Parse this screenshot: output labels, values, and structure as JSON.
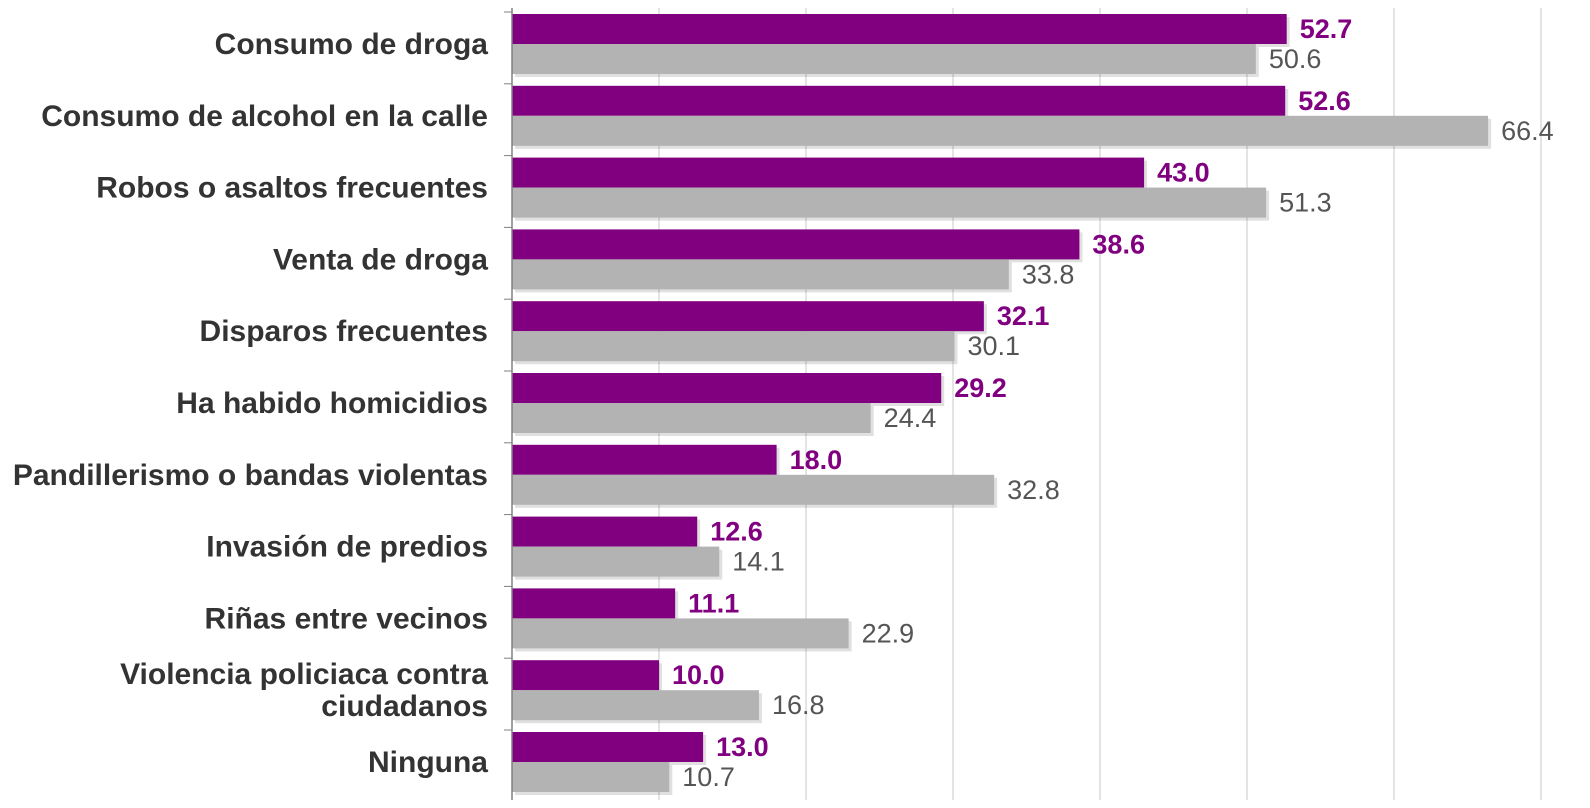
{
  "chart_data": {
    "type": "bar",
    "orientation": "horizontal",
    "categories": [
      [
        "Consumo de droga"
      ],
      [
        "Consumo de alcohol en la calle"
      ],
      [
        "Robos o asaltos frecuentes"
      ],
      [
        "Venta de droga"
      ],
      [
        "Disparos frecuentes"
      ],
      [
        "Ha habido homicidios"
      ],
      [
        "Pandillerismo o bandas violentas"
      ],
      [
        "Invasión de predios"
      ],
      [
        "Riñas entre vecinos"
      ],
      [
        "Violencia policiaca contra",
        "ciudadanos"
      ],
      [
        "Ninguna"
      ]
    ],
    "series": [
      {
        "values": [
          52.7,
          52.6,
          43.0,
          38.6,
          32.1,
          29.2,
          18.0,
          12.6,
          11.1,
          10.0,
          13.0
        ],
        "labels": [
          "52.7",
          "52.6",
          "43.0",
          "38.6",
          "32.1",
          "29.2",
          "18.0",
          "12.6",
          "11.1",
          "10.0",
          "13.0"
        ],
        "color": "#800080"
      },
      {
        "values": [
          50.6,
          66.4,
          51.3,
          33.8,
          30.1,
          24.4,
          32.8,
          14.1,
          22.9,
          16.8,
          10.7
        ],
        "labels": [
          "50.6",
          "66.4",
          "51.3",
          "33.8",
          "30.1",
          "24.4",
          "32.8",
          "14.1",
          "22.9",
          "16.8",
          "10.7"
        ],
        "color": "#b3b3b3"
      }
    ],
    "xlim": [
      0,
      70
    ],
    "grid": "vertical",
    "legend": "none",
    "gridline_color": "#c8c8c8",
    "axis_color": "#808080"
  }
}
